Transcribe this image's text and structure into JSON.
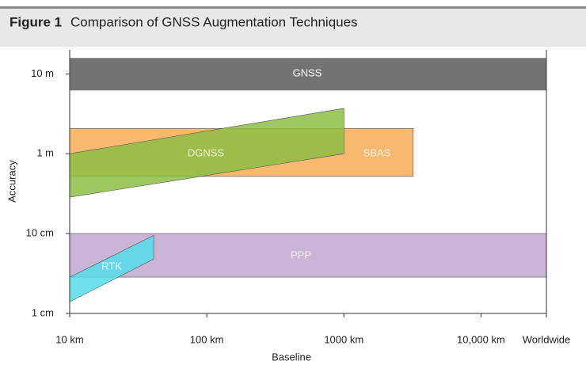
{
  "chart_data": {
    "type": "region",
    "figure_label": "Figure 1",
    "title": "Comparison of GNSS Augmentation Techniques",
    "x_label": "Baseline",
    "y_label": "Accuracy",
    "log_x": true,
    "log_y": true,
    "xlim": [
      10,
      30000
    ],
    "ylim": [
      0.01,
      20
    ],
    "xticks": [
      {
        "value": 10,
        "label": "10 km"
      },
      {
        "value": 100,
        "label": "100 km"
      },
      {
        "value": 1000,
        "label": "1000 km"
      },
      {
        "value": 10000,
        "label": "10,000 km"
      },
      {
        "value": 30000,
        "label": "Worldwide"
      }
    ],
    "yticks": [
      {
        "value": 10,
        "label": "10 m"
      },
      {
        "value": 1,
        "label": "1 m"
      },
      {
        "value": 0.1,
        "label": "10 cm"
      },
      {
        "value": 0.01,
        "label": "1 cm"
      }
    ],
    "regions": [
      {
        "name": "GNSS",
        "color": "#6b6b6b",
        "x": [
          10,
          30000,
          30000,
          10
        ],
        "y": [
          15.8,
          15.8,
          6.2,
          6.2
        ]
      },
      {
        "name": "SBAS",
        "color": "#f7b567",
        "x": [
          10,
          3200,
          3200,
          10
        ],
        "y": [
          2.07,
          2.07,
          0.52,
          0.52
        ]
      },
      {
        "name": "DGNSS",
        "color": "#8dbd45",
        "x": [
          10,
          1000,
          1000,
          10
        ],
        "y": [
          1,
          3.7,
          1,
          0.285
        ]
      },
      {
        "name": "PPP",
        "color": "#c8b1d4",
        "x": [
          10,
          30000,
          30000,
          10
        ],
        "y": [
          0.1,
          0.1,
          0.0285,
          0.0285
        ]
      },
      {
        "name": "RTK",
        "color": "#55dde9",
        "x": [
          10,
          41,
          41,
          10
        ],
        "y": [
          0.0285,
          0.095,
          0.048,
          0.014
        ]
      }
    ]
  }
}
